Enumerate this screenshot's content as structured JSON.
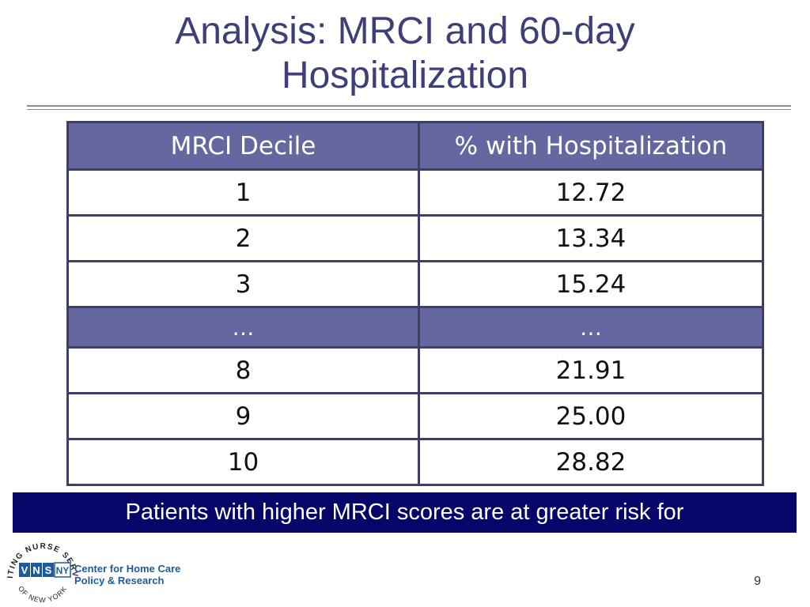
{
  "slide": {
    "title_line1": "Analysis: MRCI and 60-day",
    "title_line2": "Hospitalization",
    "page_number": "9"
  },
  "table": {
    "headers": [
      "MRCI Decile",
      "% with Hospitalization"
    ],
    "rows": [
      [
        "1",
        "12.72"
      ],
      [
        "2",
        "13.34"
      ],
      [
        "3",
        "15.24"
      ],
      [
        "…",
        "…"
      ],
      [
        "8",
        "21.91"
      ],
      [
        "9",
        "25.00"
      ],
      [
        "10",
        "28.82"
      ]
    ]
  },
  "callout": {
    "text": "Patients with higher MRCI scores are at greater risk for"
  },
  "logo": {
    "ring_top": "VISITING NURSE SERVICE",
    "ring_bottom": "OF NEW YORK",
    "mark_letters": [
      "V",
      "N",
      "S",
      "NY"
    ],
    "org_line1": "Center for Home Care",
    "org_line2": "Policy & Research"
  },
  "colors": {
    "title": "#3f3f78",
    "header_fill": "#6467a0",
    "table_border": "#3f3f66",
    "callout_fill": "#05056a",
    "logo_blue": "#1f5b9a"
  }
}
